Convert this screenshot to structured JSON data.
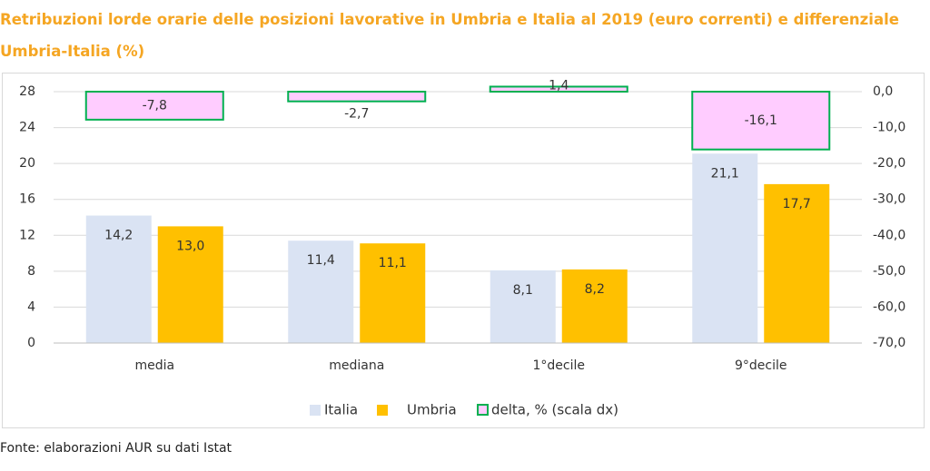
{
  "title": "Retribuzioni lorde orarie delle posizioni lavorative in Umbria e Italia al 2019 (euro correnti) e differenziale Umbria-Italia (%)",
  "source": "Fonte: elaborazioni AUR su dati Istat",
  "chart_data": {
    "type": "bar",
    "title": "Retribuzioni lorde orarie delle posizioni lavorative in Umbria e Italia al 2019 (euro correnti) e differenziale Umbria-Italia (%)",
    "categories": [
      "media",
      "mediana",
      "1°decile",
      "9°decile"
    ],
    "series": [
      {
        "name": "Italia",
        "axis": "left",
        "values": [
          14.2,
          11.4,
          8.1,
          21.1
        ],
        "labels": [
          "14,2",
          "11,4",
          "8,1",
          "21,1"
        ],
        "color": "#dae3f3"
      },
      {
        "name": "Umbria",
        "axis": "left",
        "values": [
          13.0,
          11.1,
          8.2,
          17.7
        ],
        "labels": [
          "13,0",
          "11,1",
          "8,2",
          "17,7"
        ],
        "color": "#ffc000"
      },
      {
        "name": "delta, % (scala dx)",
        "axis": "right",
        "values": [
          -7.8,
          -2.7,
          1.4,
          -16.1
        ],
        "labels": [
          "-7,8",
          "-2,7",
          "1,4",
          "-16,1"
        ],
        "color": "#ffccff",
        "border": "#00b050"
      }
    ],
    "ylim_left": [
      0,
      28
    ],
    "yticks_left": [
      "0",
      "4",
      "8",
      "12",
      "16",
      "20",
      "24",
      "28"
    ],
    "ylim_right": [
      -70,
      0
    ],
    "yticks_right": [
      "0,0",
      "-10,0",
      "-20,0",
      "-30,0",
      "-40,0",
      "-50,0",
      "-60,0",
      "-70,0"
    ],
    "grid": true,
    "legend": "bottom"
  }
}
